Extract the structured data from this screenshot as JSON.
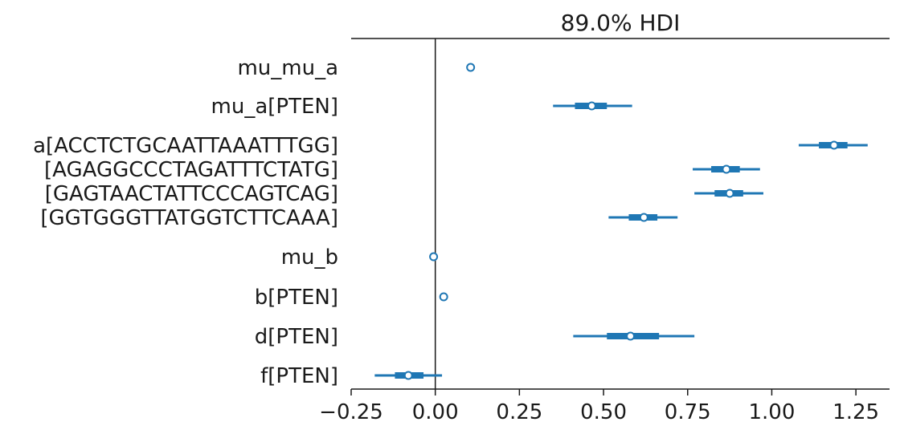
{
  "chart_data": {
    "type": "forest",
    "title": "89.0% HDI",
    "xlim": [
      -0.25,
      1.35
    ],
    "xticks": [
      -0.25,
      0.0,
      0.25,
      0.5,
      0.75,
      1.0,
      1.25
    ],
    "xtick_labels": [
      "−0.25",
      "0.00",
      "0.25",
      "0.50",
      "0.75",
      "1.00",
      "1.25"
    ],
    "reference_line_x": 0.0,
    "series_color": "#1f77b4",
    "rows": [
      {
        "label": "mu_mu_a",
        "median": 0.105,
        "q25": null,
        "q75": null,
        "hdi_low": null,
        "hdi_high": null
      },
      {
        "label": "mu_a[PTEN]",
        "median": 0.465,
        "q25": 0.415,
        "q75": 0.51,
        "hdi_low": 0.35,
        "hdi_high": 0.585
      },
      {
        "label": "a[ACCTCTGCAATTAAATTTGG]",
        "median": 1.185,
        "q25": 1.14,
        "q75": 1.225,
        "hdi_low": 1.08,
        "hdi_high": 1.285
      },
      {
        "label": "[AGAGGCCCTAGATTTCTATG]",
        "median": 0.865,
        "q25": 0.82,
        "q75": 0.905,
        "hdi_low": 0.765,
        "hdi_high": 0.965
      },
      {
        "label": "[GAGTAACTATTCCCAGTCAG]",
        "median": 0.875,
        "q25": 0.83,
        "q75": 0.915,
        "hdi_low": 0.77,
        "hdi_high": 0.975
      },
      {
        "label": "[GGTGGGTTATGGTCTTCAAA]",
        "median": 0.62,
        "q25": 0.575,
        "q75": 0.66,
        "hdi_low": 0.515,
        "hdi_high": 0.72
      },
      {
        "label": "mu_b",
        "median": -0.005,
        "q25": null,
        "q75": null,
        "hdi_low": null,
        "hdi_high": null
      },
      {
        "label": "b[PTEN]",
        "median": 0.025,
        "q25": null,
        "q75": null,
        "hdi_low": null,
        "hdi_high": null
      },
      {
        "label": "d[PTEN]",
        "median": 0.58,
        "q25": 0.51,
        "q75": 0.665,
        "hdi_low": 0.41,
        "hdi_high": 0.77
      },
      {
        "label": "f[PTEN]",
        "median": -0.08,
        "q25": -0.12,
        "q75": -0.035,
        "hdi_low": -0.18,
        "hdi_high": 0.02
      }
    ]
  }
}
